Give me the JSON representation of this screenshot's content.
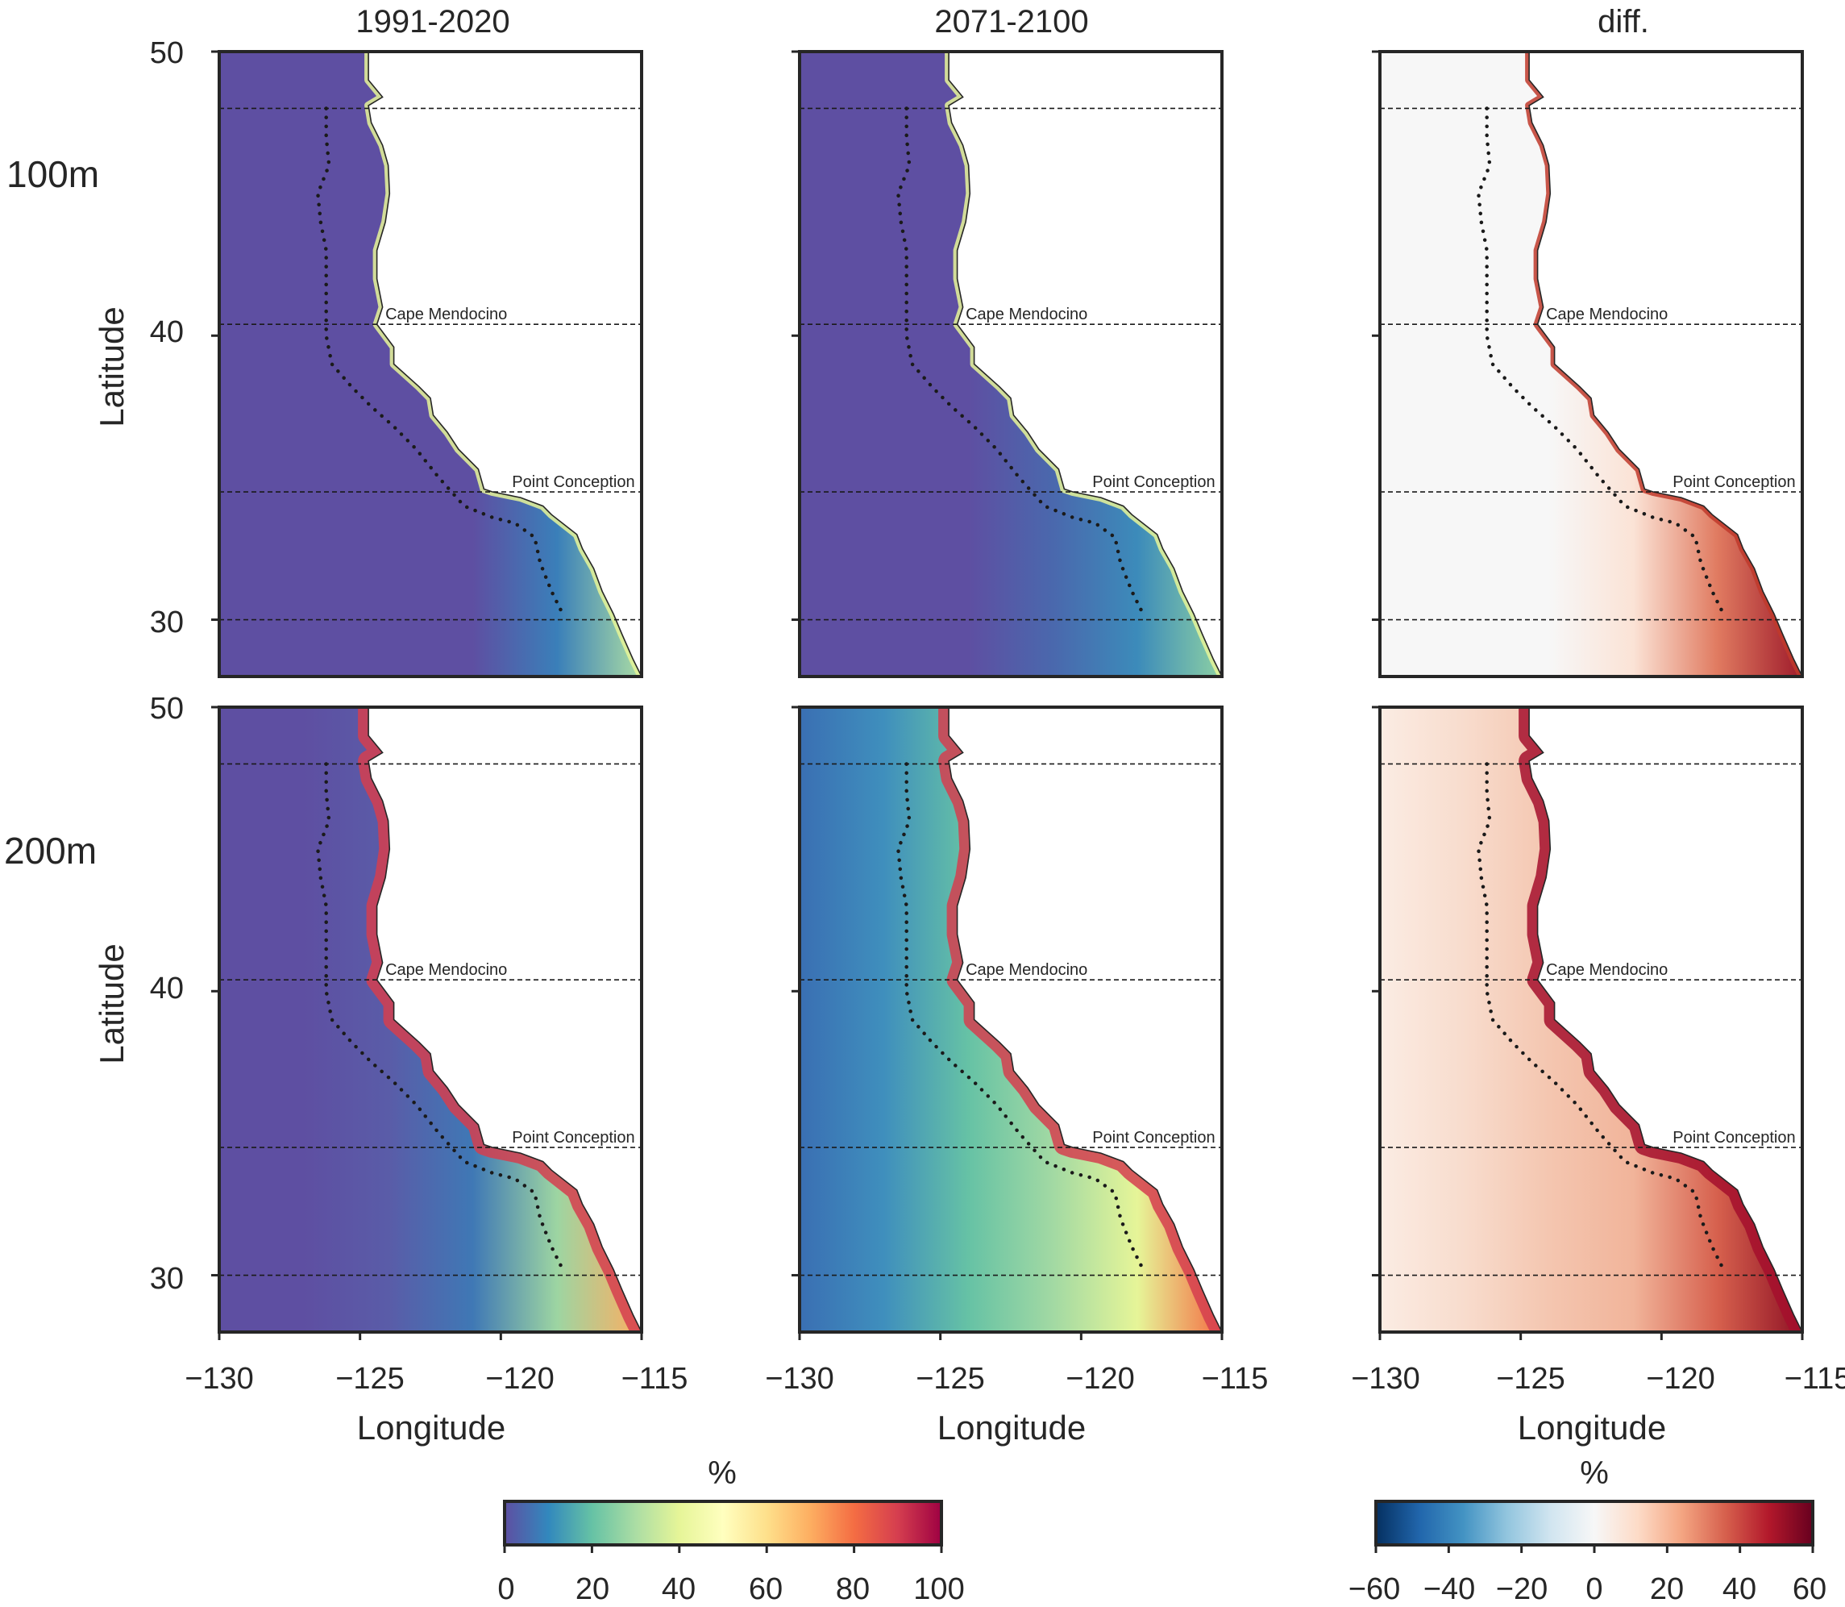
{
  "columns": [
    "1991-2020",
    "2071-2100",
    "diff."
  ],
  "rows": [
    "100m",
    "200m"
  ],
  "axes": {
    "xlabel": "Longitude",
    "ylabel": "Latitude",
    "xlim": [
      -130,
      -115
    ],
    "ylim": [
      28,
      50
    ],
    "xticks": [
      "−130",
      "−125",
      "−120",
      "−115"
    ],
    "yticks": [
      "50",
      "40",
      "30"
    ]
  },
  "reference_lines": [
    {
      "lat": 48,
      "label": ""
    },
    {
      "lat": 40.4,
      "label": "Cape Mendocino"
    },
    {
      "lat": 34.5,
      "label": "Point Conception"
    },
    {
      "lat": 30,
      "label": ""
    }
  ],
  "colorbars": [
    {
      "title": "%",
      "cmap": "Spectral_r",
      "range": [
        0,
        100
      ],
      "ticks": [
        "0",
        "20",
        "40",
        "60",
        "80",
        "100"
      ]
    },
    {
      "title": "%",
      "cmap": "RdBu_r",
      "range": [
        -60,
        60
      ],
      "ticks": [
        "−60",
        "−40",
        "−20",
        "0",
        "20",
        "40",
        "60"
      ]
    }
  ],
  "colors": {
    "ocean_low": "#5e4fa2",
    "diff_zero": "#f7f7f7",
    "dark_red": "#9e0142"
  }
}
